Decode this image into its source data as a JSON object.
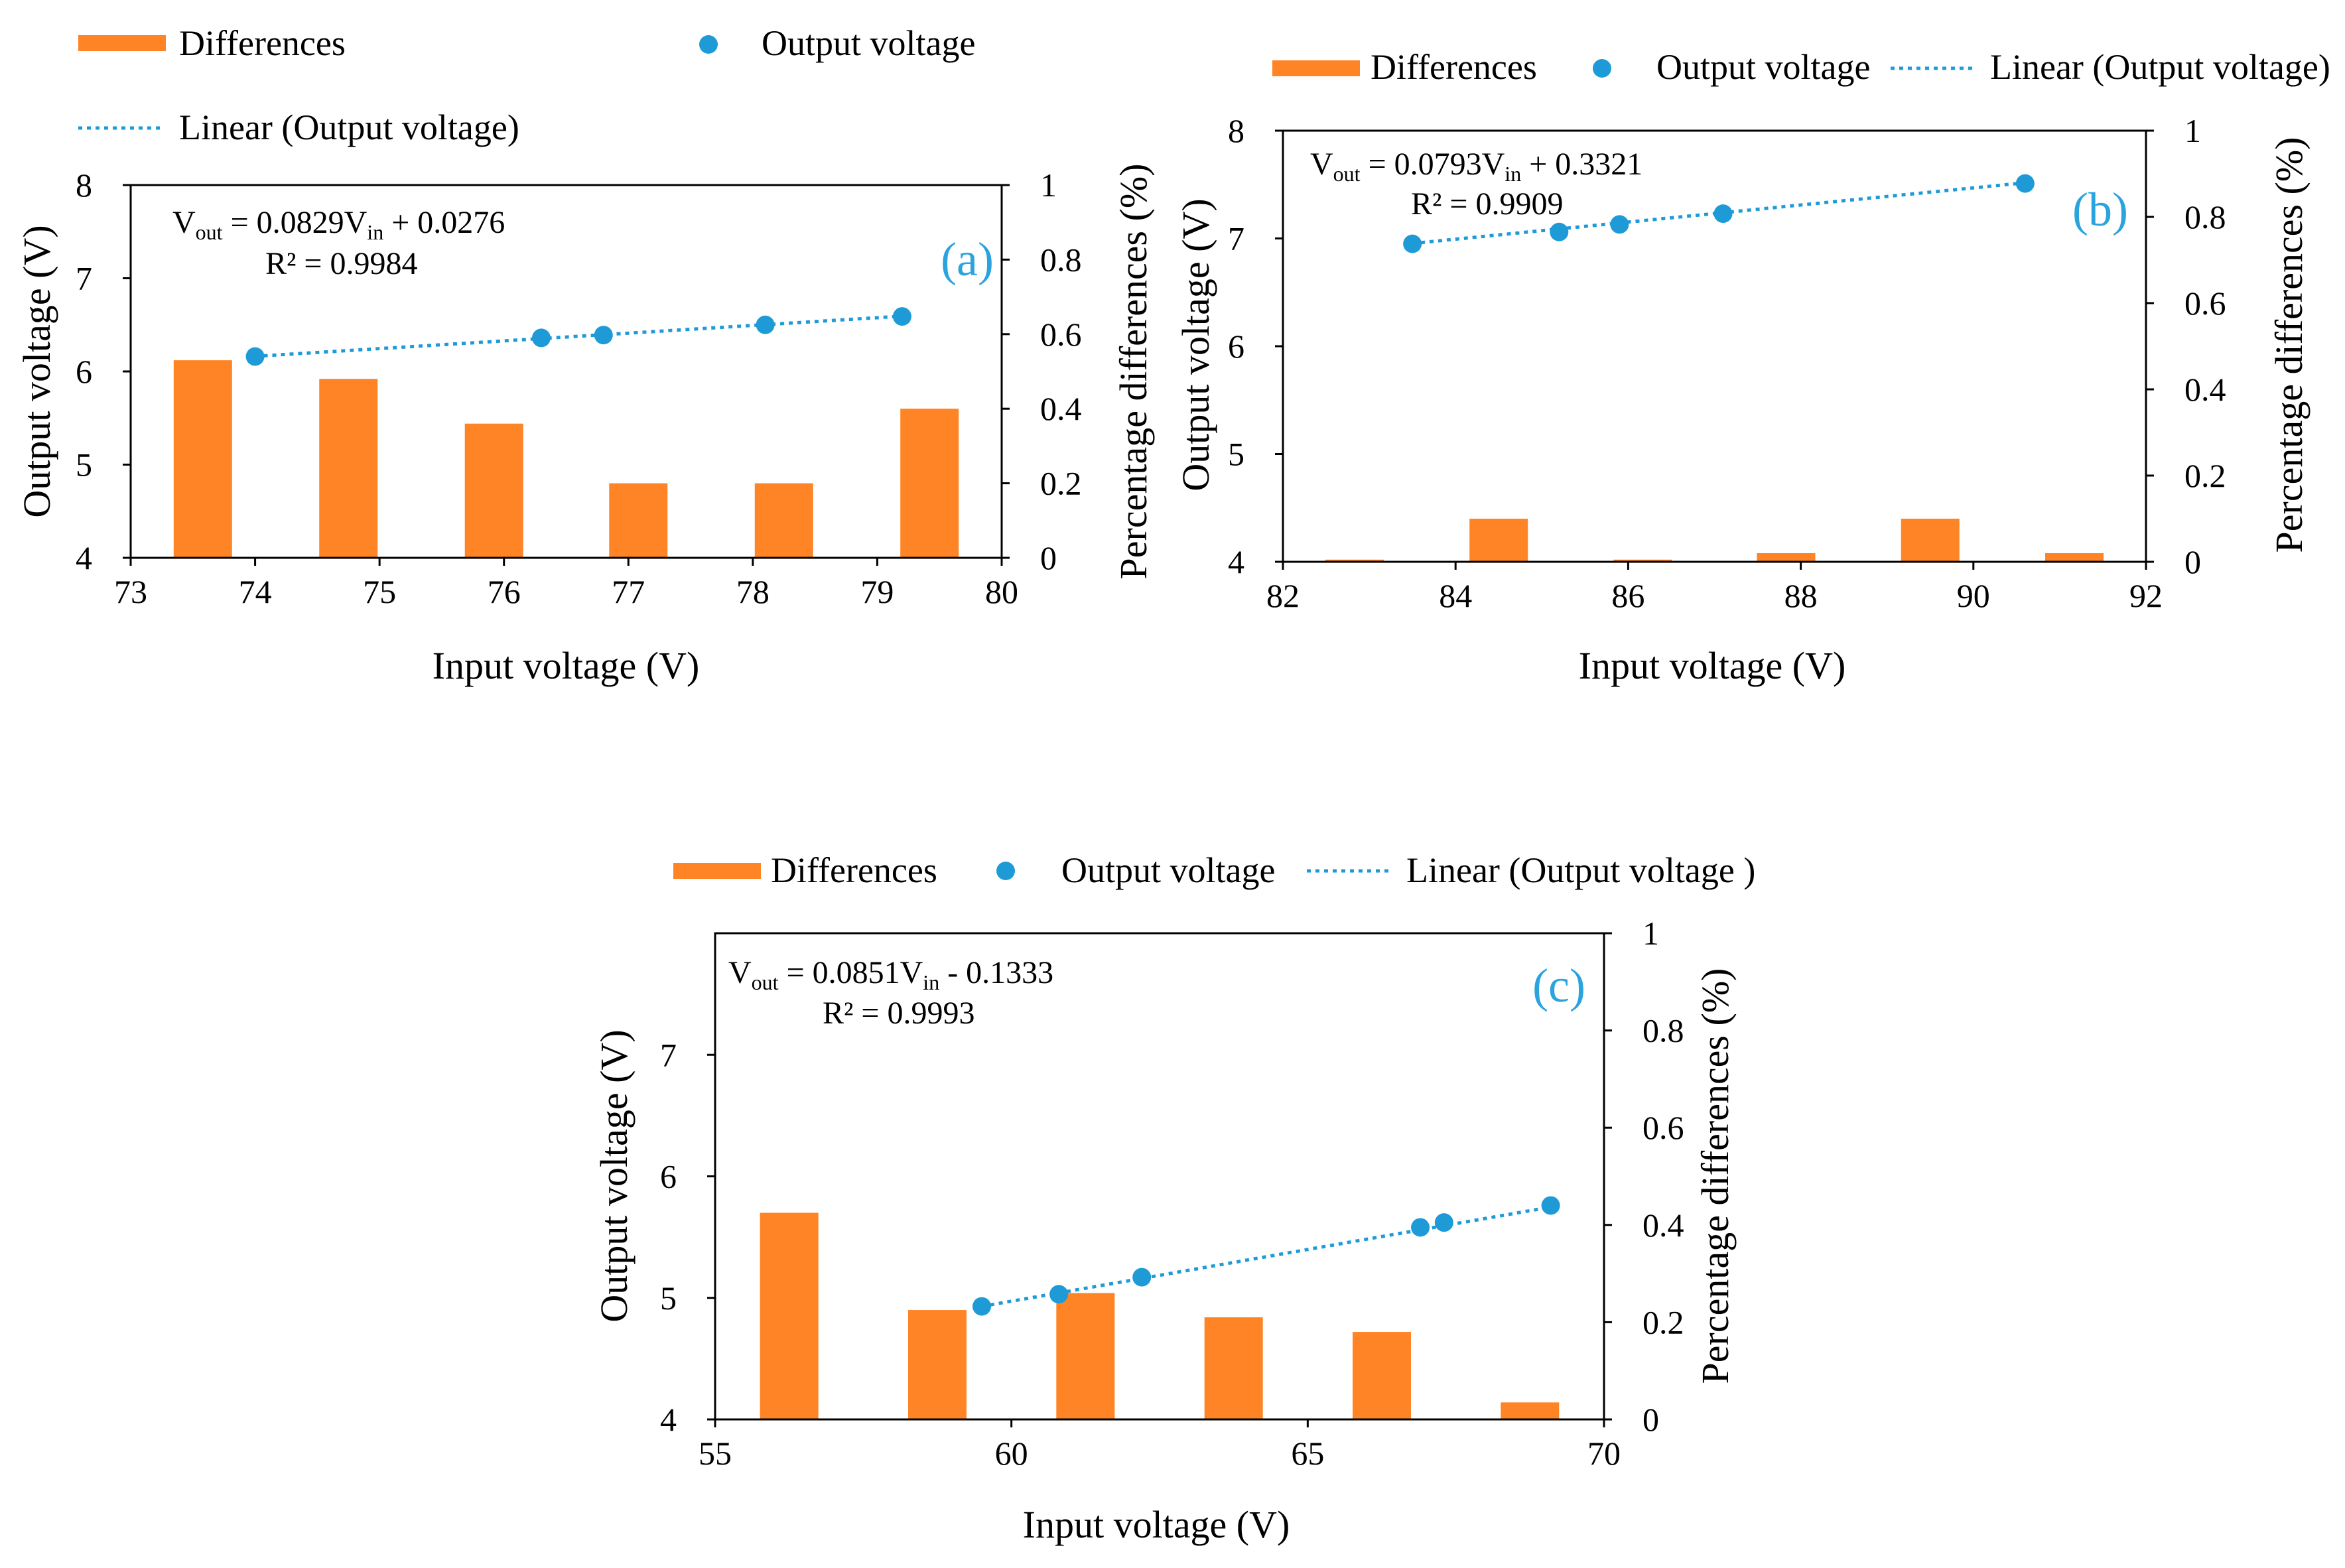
{
  "colors": {
    "bar": "#FF8425",
    "point": "#1E9BD7",
    "trend": "#1E9BD7",
    "axis": "#000000",
    "label": "#2BA3DD"
  },
  "chart_data": [
    {
      "id": "a",
      "type": "bar+scatter",
      "panel_label": "(a)",
      "legend": {
        "bars": "Differences",
        "points": "Output voltage",
        "trend": "Linear (Output voltage)"
      },
      "xlabel": "Input voltage (V)",
      "ylabel": "Output voltage (V)",
      "y2label": "Percentage differences (%)",
      "xlim": [
        73,
        80
      ],
      "ylim": [
        4,
        8
      ],
      "y2lim": [
        0,
        1
      ],
      "xticks": [
        "73",
        "74",
        "75",
        "76",
        "77",
        "78",
        "79",
        "80"
      ],
      "yticks": [
        "4",
        "5",
        "6",
        "7",
        "8"
      ],
      "y2ticks": [
        "0",
        "0.2",
        "0.4",
        "0.6",
        "0.8",
        "1"
      ],
      "points": {
        "x": [
          74.0,
          76.3,
          76.8,
          78.1,
          79.2
        ],
        "y": [
          6.16,
          6.36,
          6.39,
          6.5,
          6.59
        ]
      },
      "trend": {
        "slope": 0.0829,
        "intercept": 0.0276
      },
      "bars": {
        "x": [
          73.58,
          74.75,
          75.92,
          77.08,
          78.25,
          79.42
        ],
        "values": [
          0.53,
          0.48,
          0.36,
          0.2,
          0.2,
          0.4
        ]
      },
      "equation": {
        "lhs": "V",
        "lhs_sub": "out",
        "mid": " = 0.0829V",
        "mid_sub": "in",
        "rhs": " + 0.0276",
        "r2": "R² = 0.9984"
      }
    },
    {
      "id": "b",
      "type": "bar+scatter",
      "panel_label": "(b)",
      "legend": {
        "bars": "Differences",
        "points": "Output voltage",
        "trend": "Linear (Output voltage)"
      },
      "xlabel": "Input voltage (V)",
      "ylabel": "Output voltage (V)",
      "y2label": "Percentage differences (%)",
      "xlim": [
        82,
        92
      ],
      "ylim": [
        4,
        8
      ],
      "y2lim": [
        0,
        1
      ],
      "xticks": [
        "82",
        "84",
        "86",
        "88",
        "90",
        "92"
      ],
      "yticks": [
        "4",
        "5",
        "6",
        "7",
        "8"
      ],
      "y2ticks": [
        "0",
        "0.2",
        "0.4",
        "0.6",
        "0.8",
        "1"
      ],
      "points": {
        "x": [
          83.5,
          85.2,
          85.9,
          87.1,
          90.6
        ],
        "y": [
          6.95,
          7.06,
          7.13,
          7.23,
          7.51
        ]
      },
      "trend": {
        "slope": 0.0793,
        "intercept": 0.3321
      },
      "bars": {
        "x": [
          82.83,
          84.5,
          86.17,
          87.83,
          89.5,
          91.17
        ],
        "values": [
          0.005,
          0.1,
          0.005,
          0.02,
          0.1,
          0.02
        ]
      },
      "equation": {
        "lhs": "V",
        "lhs_sub": "out",
        "mid": " = 0.0793V",
        "mid_sub": "in",
        "rhs": " + 0.3321",
        "r2": "R² = 0.9909"
      }
    },
    {
      "id": "c",
      "type": "bar+scatter",
      "panel_label": "(c)",
      "legend": {
        "bars": "Differences",
        "points": "Output voltage",
        "trend": "Linear (Output voltage )"
      },
      "xlabel": "Input voltage (V)",
      "ylabel": "Output voltage (V)",
      "y2label": "Percentage differences (%)",
      "xlim": [
        55,
        70
      ],
      "ylim": [
        4,
        8
      ],
      "y2lim": [
        0,
        1
      ],
      "xticks": [
        "55",
        "60",
        "65",
        "70"
      ],
      "yticks": [
        "4",
        "5",
        "6",
        "7"
      ],
      "y2ticks": [
        "0",
        "0.2",
        "0.4",
        "0.6",
        "0.8",
        "1"
      ],
      "points": {
        "x": [
          59.5,
          60.8,
          62.2,
          66.9,
          67.3,
          69.1
        ],
        "y": [
          4.93,
          5.03,
          5.17,
          5.58,
          5.62,
          5.76
        ]
      },
      "trend": {
        "slope": 0.0851,
        "intercept": -0.1333
      },
      "bars": {
        "x": [
          56.25,
          58.75,
          61.25,
          63.75,
          66.25,
          68.75
        ],
        "values": [
          0.425,
          0.225,
          0.26,
          0.21,
          0.18,
          0.035
        ]
      },
      "equation": {
        "lhs": "V",
        "lhs_sub": "out",
        "mid": " = 0.0851V",
        "mid_sub": "in",
        "rhs": " - 0.1333",
        "r2": "R² = 0.9993"
      }
    }
  ]
}
